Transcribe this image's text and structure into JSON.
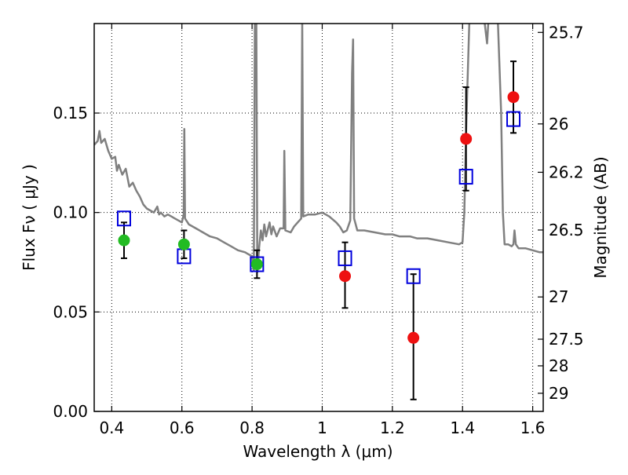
{
  "chart_data": {
    "type": "scatter",
    "title": "",
    "xlabel": "Wavelength  λ (μm)",
    "ylabel": "Flux  Fν  ( μJy )",
    "ylabel_right": "Magnitude (AB)",
    "xlim": [
      0.35,
      1.63
    ],
    "ylim": [
      0.0,
      0.195
    ],
    "grid": true,
    "x_ticks": [
      {
        "v": 0.4,
        "label": "0.4"
      },
      {
        "v": 0.6,
        "label": "0.6"
      },
      {
        "v": 0.8,
        "label": "0.8"
      },
      {
        "v": 1.0,
        "label": "1"
      },
      {
        "v": 1.2,
        "label": "1.2"
      },
      {
        "v": 1.4,
        "label": "1.4"
      },
      {
        "v": 1.6,
        "label": "1.6"
      }
    ],
    "y_ticks": [
      {
        "v": 0.0,
        "label": "0.00"
      },
      {
        "v": 0.05,
        "label": "0.05"
      },
      {
        "v": 0.1,
        "label": "0.10"
      },
      {
        "v": 0.15,
        "label": "0.15"
      }
    ],
    "right_ticks": [
      {
        "label": "25.7"
      },
      {
        "label": "26"
      },
      {
        "label": "26.2"
      },
      {
        "label": "26.5"
      },
      {
        "label": "27"
      },
      {
        "label": "27.5"
      },
      {
        "label": "28"
      },
      {
        "label": "29"
      }
    ],
    "colors": {
      "model": "#808080",
      "observed_optical": "#22bb22",
      "observed_nir": "#ee1111",
      "model_photometry": "#0000dd",
      "errorbar": "#000000"
    },
    "series": [
      {
        "kind": "line",
        "points": [
          [
            0.35,
            0.134
          ],
          [
            0.36,
            0.136
          ],
          [
            0.365,
            0.141
          ],
          [
            0.37,
            0.135
          ],
          [
            0.38,
            0.137
          ],
          [
            0.39,
            0.131
          ],
          [
            0.4,
            0.127
          ],
          [
            0.41,
            0.128
          ],
          [
            0.415,
            0.121
          ],
          [
            0.42,
            0.124
          ],
          [
            0.43,
            0.119
          ],
          [
            0.44,
            0.122
          ],
          [
            0.45,
            0.113
          ],
          [
            0.46,
            0.115
          ],
          [
            0.47,
            0.111
          ],
          [
            0.48,
            0.108
          ],
          [
            0.49,
            0.104
          ],
          [
            0.5,
            0.102
          ],
          [
            0.51,
            0.101
          ],
          [
            0.52,
            0.1
          ],
          [
            0.53,
            0.103
          ],
          [
            0.535,
            0.099
          ],
          [
            0.54,
            0.1
          ],
          [
            0.55,
            0.098
          ],
          [
            0.56,
            0.099
          ],
          [
            0.57,
            0.098
          ],
          [
            0.58,
            0.097
          ],
          [
            0.59,
            0.096
          ],
          [
            0.6,
            0.095
          ],
          [
            0.605,
            0.099
          ],
          [
            0.607,
            0.142
          ],
          [
            0.609,
            0.097
          ],
          [
            0.62,
            0.094
          ],
          [
            0.64,
            0.092
          ],
          [
            0.66,
            0.09
          ],
          [
            0.68,
            0.088
          ],
          [
            0.7,
            0.087
          ],
          [
            0.72,
            0.085
          ],
          [
            0.74,
            0.083
          ],
          [
            0.76,
            0.081
          ],
          [
            0.78,
            0.08
          ],
          [
            0.79,
            0.079
          ],
          [
            0.8,
            0.078
          ],
          [
            0.805,
            0.071
          ],
          [
            0.808,
            0.2
          ],
          [
            0.812,
            0.2
          ],
          [
            0.815,
            0.07
          ],
          [
            0.82,
            0.082
          ],
          [
            0.825,
            0.091
          ],
          [
            0.83,
            0.086
          ],
          [
            0.835,
            0.094
          ],
          [
            0.84,
            0.088
          ],
          [
            0.85,
            0.095
          ],
          [
            0.855,
            0.089
          ],
          [
            0.86,
            0.093
          ],
          [
            0.87,
            0.088
          ],
          [
            0.88,
            0.092
          ],
          [
            0.89,
            0.092
          ],
          [
            0.892,
            0.131
          ],
          [
            0.895,
            0.091
          ],
          [
            0.91,
            0.09
          ],
          [
            0.92,
            0.093
          ],
          [
            0.93,
            0.095
          ],
          [
            0.94,
            0.097
          ],
          [
            0.943,
            0.195
          ],
          [
            0.946,
            0.098
          ],
          [
            0.96,
            0.099
          ],
          [
            0.98,
            0.099
          ],
          [
            1.0,
            0.1
          ],
          [
            1.02,
            0.098
          ],
          [
            1.04,
            0.095
          ],
          [
            1.05,
            0.093
          ],
          [
            1.06,
            0.09
          ],
          [
            1.07,
            0.091
          ],
          [
            1.08,
            0.096
          ],
          [
            1.085,
            0.17
          ],
          [
            1.088,
            0.187
          ],
          [
            1.091,
            0.097
          ],
          [
            1.1,
            0.091
          ],
          [
            1.12,
            0.091
          ],
          [
            1.15,
            0.09
          ],
          [
            1.18,
            0.089
          ],
          [
            1.2,
            0.089
          ],
          [
            1.22,
            0.088
          ],
          [
            1.25,
            0.088
          ],
          [
            1.27,
            0.087
          ],
          [
            1.3,
            0.087
          ],
          [
            1.33,
            0.086
          ],
          [
            1.36,
            0.085
          ],
          [
            1.39,
            0.084
          ],
          [
            1.4,
            0.085
          ],
          [
            1.405,
            0.1
          ],
          [
            1.41,
            0.14
          ],
          [
            1.415,
            0.17
          ],
          [
            1.42,
            0.2
          ],
          [
            1.46,
            0.2
          ],
          [
            1.47,
            0.185
          ],
          [
            1.475,
            0.2
          ],
          [
            1.5,
            0.2
          ],
          [
            1.51,
            0.15
          ],
          [
            1.515,
            0.1
          ],
          [
            1.52,
            0.084
          ],
          [
            1.53,
            0.084
          ],
          [
            1.54,
            0.083
          ],
          [
            1.545,
            0.084
          ],
          [
            1.548,
            0.091
          ],
          [
            1.552,
            0.084
          ],
          [
            1.56,
            0.082
          ],
          [
            1.58,
            0.082
          ],
          [
            1.6,
            0.081
          ],
          [
            1.62,
            0.08
          ],
          [
            1.63,
            0.08
          ]
        ]
      },
      {
        "kind": "observed",
        "color_key": "observed_optical",
        "points": [
          {
            "x": 0.435,
            "y": 0.086,
            "lo": 0.077,
            "hi": 0.095
          },
          {
            "x": 0.606,
            "y": 0.084,
            "lo": 0.077,
            "hi": 0.091
          },
          {
            "x": 0.814,
            "y": 0.074,
            "lo": 0.067,
            "hi": 0.081
          }
        ]
      },
      {
        "kind": "observed",
        "color_key": "observed_nir",
        "points": [
          {
            "x": 1.065,
            "y": 0.068,
            "lo": 0.052,
            "hi": 0.085
          },
          {
            "x": 1.26,
            "y": 0.037,
            "lo": 0.006,
            "hi": 0.069
          },
          {
            "x": 1.41,
            "y": 0.137,
            "lo": 0.111,
            "hi": 0.163
          },
          {
            "x": 1.545,
            "y": 0.158,
            "lo": 0.14,
            "hi": 0.176
          }
        ]
      },
      {
        "kind": "model_photometry",
        "color_key": "model_photometry",
        "points": [
          {
            "x": 0.435,
            "y": 0.097
          },
          {
            "x": 0.606,
            "y": 0.078
          },
          {
            "x": 0.814,
            "y": 0.074
          },
          {
            "x": 1.065,
            "y": 0.077
          },
          {
            "x": 1.26,
            "y": 0.068
          },
          {
            "x": 1.41,
            "y": 0.118
          },
          {
            "x": 1.545,
            "y": 0.147
          }
        ]
      }
    ]
  }
}
